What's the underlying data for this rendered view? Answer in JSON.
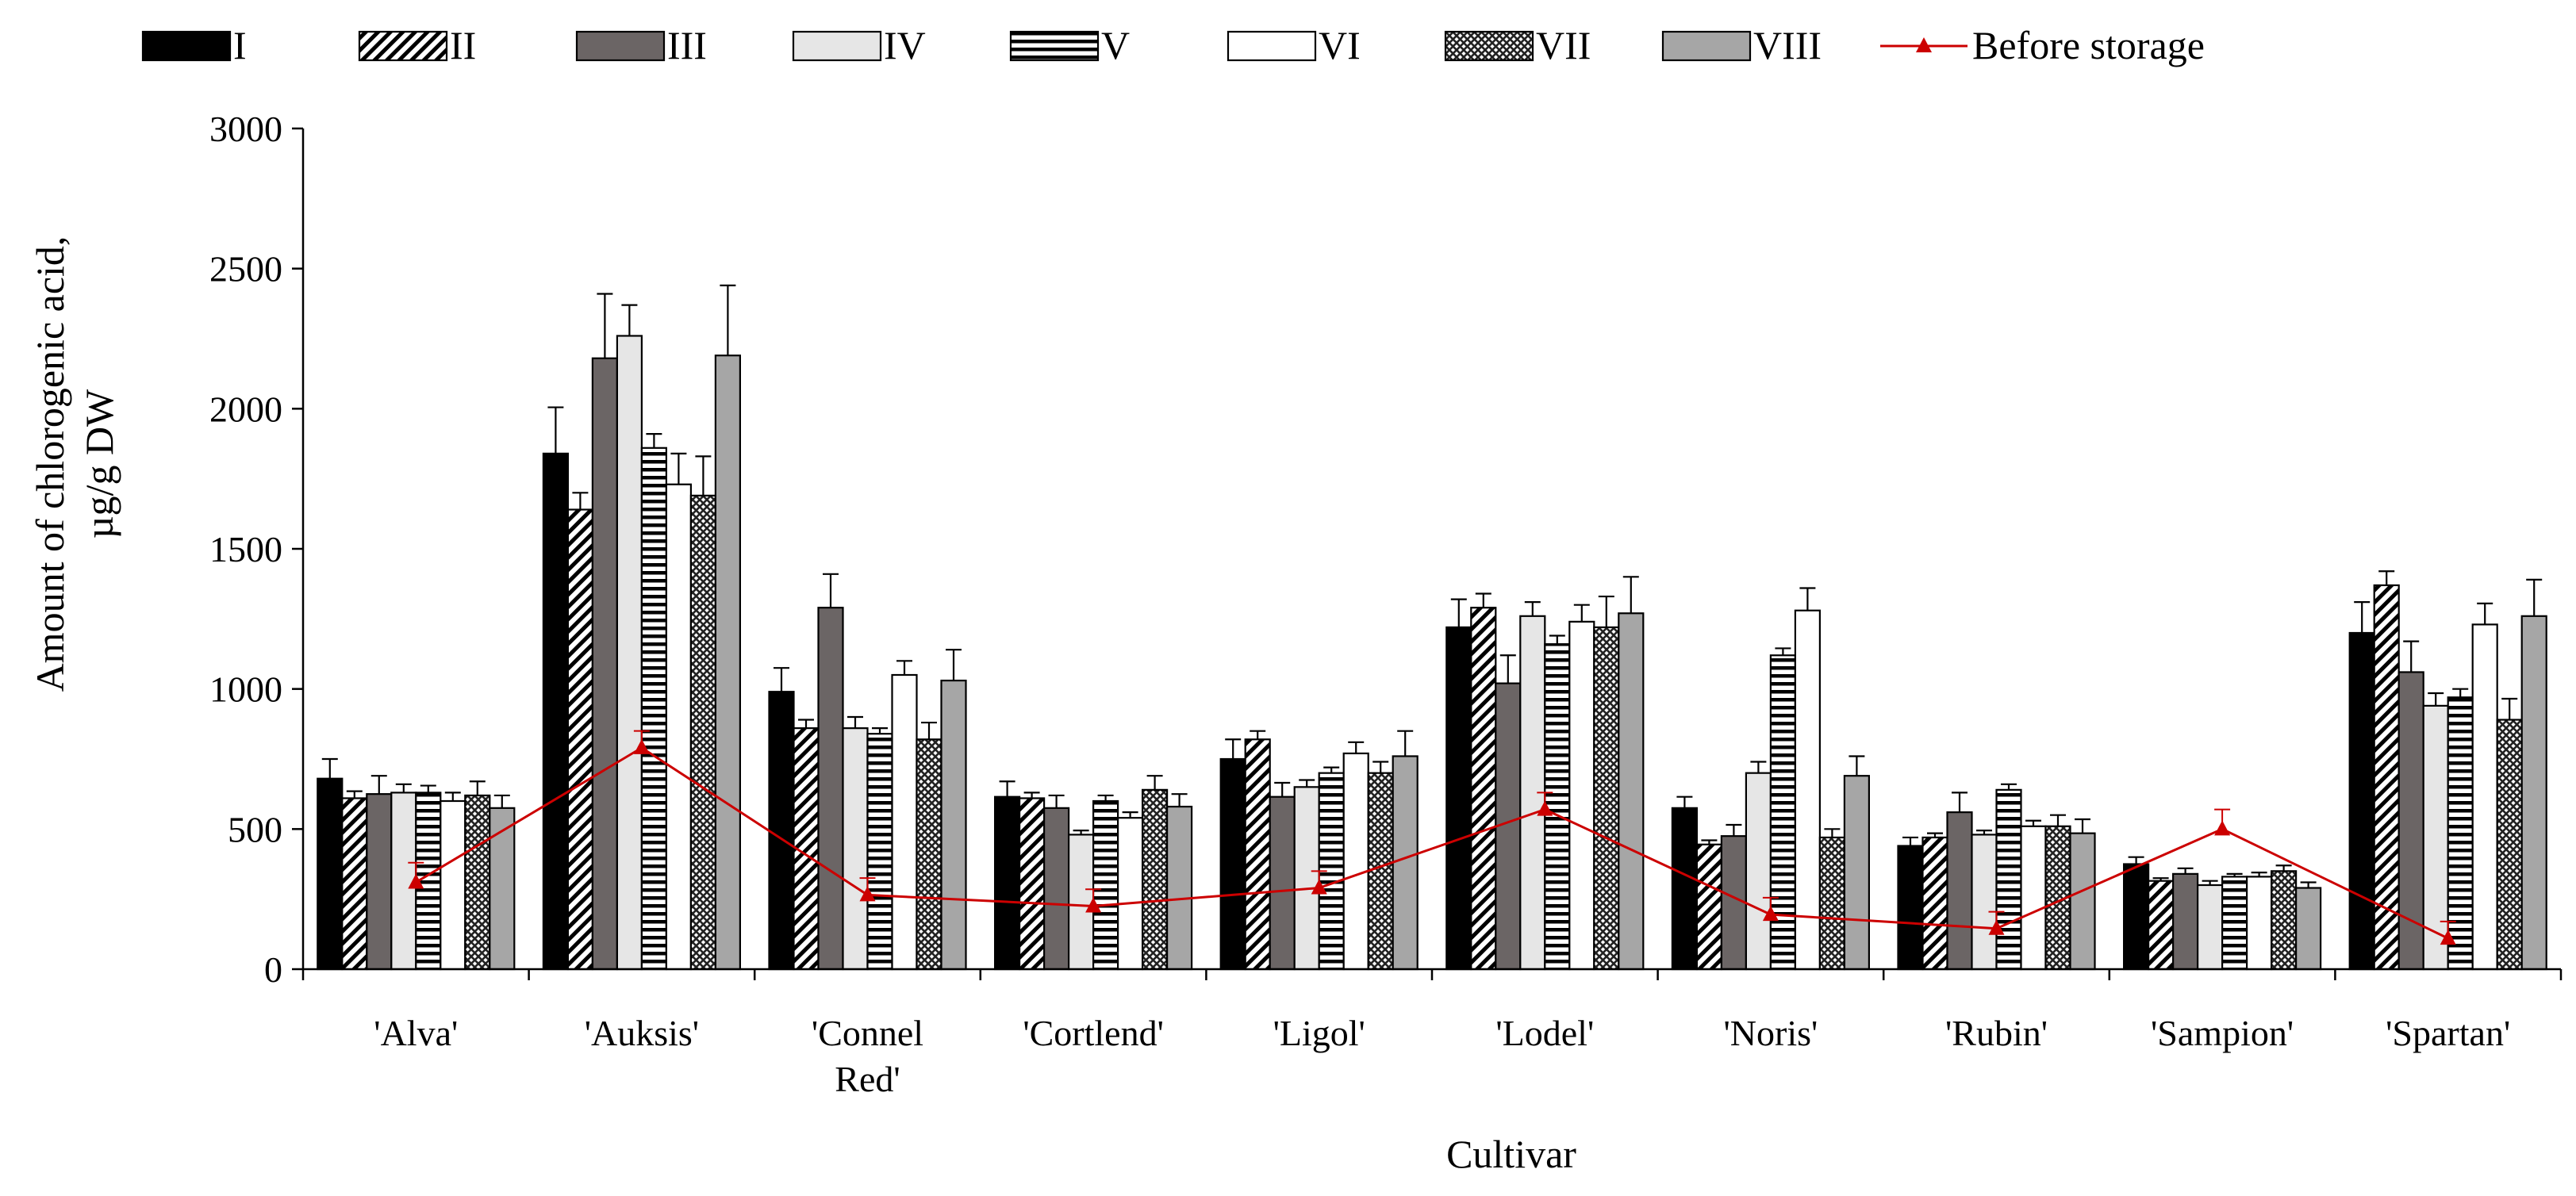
{
  "chart_data": {
    "type": "bar",
    "title": "",
    "ylabel_lines": [
      "Amount of chlorogenic acid,",
      "µg/g DW"
    ],
    "xlabel": "Cultivar",
    "ylim": [
      0,
      3000
    ],
    "yticks": [
      0,
      500,
      1000,
      1500,
      2000,
      2500,
      3000
    ],
    "categories": [
      [
        "'Alva'"
      ],
      [
        "'Auksis'"
      ],
      [
        "'Connel",
        "Red'"
      ],
      [
        "'Cortlend'"
      ],
      [
        "'Ligol'"
      ],
      [
        "'Lodel'"
      ],
      [
        "'Noris'"
      ],
      [
        "'Rubin'"
      ],
      [
        "'Sampion'"
      ],
      [
        "'Spartan'"
      ]
    ],
    "legend_position": "top",
    "series": [
      {
        "name": "I",
        "pattern": "solid-black",
        "values": [
          680,
          1840,
          990,
          615,
          750,
          1220,
          575,
          440,
          375,
          1200
        ],
        "errors": [
          70,
          165,
          85,
          55,
          70,
          100,
          40,
          30,
          25,
          110
        ]
      },
      {
        "name": "II",
        "pattern": "diagonal",
        "values": [
          610,
          1640,
          860,
          610,
          820,
          1290,
          445,
          470,
          315,
          1370
        ],
        "errors": [
          25,
          60,
          30,
          20,
          30,
          50,
          15,
          15,
          10,
          50
        ]
      },
      {
        "name": "III",
        "pattern": "solid-dark-gray",
        "values": [
          625,
          2180,
          1290,
          575,
          615,
          1020,
          475,
          560,
          340,
          1060
        ],
        "errors": [
          65,
          230,
          120,
          45,
          50,
          100,
          40,
          70,
          20,
          110
        ]
      },
      {
        "name": "IV",
        "pattern": "solid-light-gray",
        "values": [
          630,
          2260,
          860,
          480,
          650,
          1260,
          700,
          480,
          300,
          940
        ],
        "errors": [
          30,
          110,
          40,
          15,
          25,
          50,
          40,
          15,
          15,
          45
        ]
      },
      {
        "name": "V",
        "pattern": "horizontal-stripes",
        "values": [
          630,
          1860,
          840,
          600,
          700,
          1160,
          1120,
          640,
          330,
          970
        ],
        "errors": [
          25,
          50,
          20,
          20,
          20,
          30,
          25,
          20,
          10,
          30
        ]
      },
      {
        "name": "VI",
        "pattern": "white",
        "values": [
          600,
          1730,
          1050,
          540,
          770,
          1240,
          1280,
          510,
          330,
          1230
        ],
        "errors": [
          30,
          110,
          50,
          20,
          40,
          60,
          80,
          20,
          15,
          75
        ]
      },
      {
        "name": "VII",
        "pattern": "crosshatch",
        "values": [
          620,
          1690,
          820,
          640,
          700,
          1220,
          470,
          510,
          350,
          890
        ],
        "errors": [
          50,
          140,
          60,
          50,
          40,
          110,
          30,
          40,
          20,
          75
        ]
      },
      {
        "name": "VIII",
        "pattern": "solid-medium-gray",
        "values": [
          575,
          2190,
          1030,
          580,
          760,
          1270,
          690,
          485,
          290,
          1260
        ],
        "errors": [
          45,
          250,
          110,
          45,
          90,
          130,
          70,
          50,
          20,
          130
        ]
      }
    ],
    "line_series": {
      "name": "Before storage",
      "color": "#cc0000",
      "values": [
        310,
        790,
        265,
        225,
        290,
        570,
        195,
        145,
        500,
        110
      ],
      "errors": [
        70,
        60,
        60,
        60,
        60,
        60,
        60,
        60,
        70,
        60
      ]
    }
  }
}
